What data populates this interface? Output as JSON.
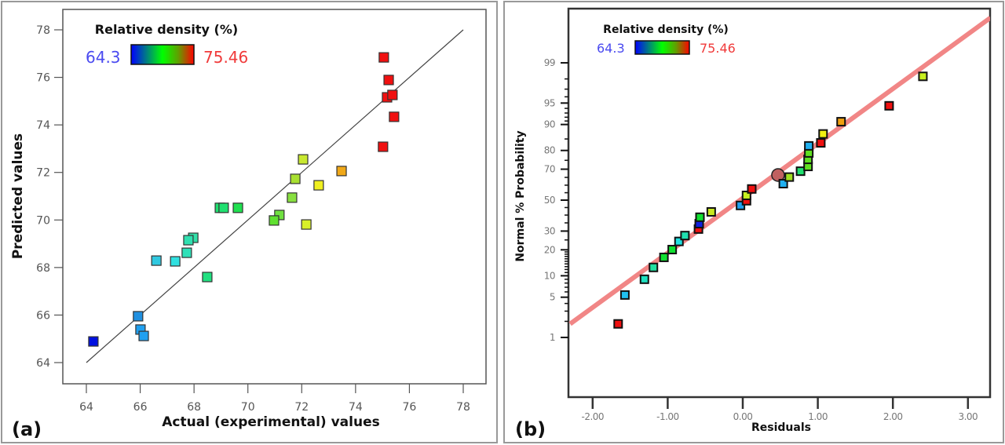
{
  "chart_data": [
    {
      "id": "a",
      "type": "scatter",
      "panel_label": "(a)",
      "title": "",
      "xlabel": "Actual (experimental) values",
      "ylabel": "Predicted values",
      "xlim": [
        64,
        78
      ],
      "ylim": [
        64,
        78
      ],
      "xticks": [
        "64",
        "66",
        "68",
        "70",
        "72",
        "74",
        "76",
        "78"
      ],
      "yticks": [
        "64",
        "66",
        "68",
        "70",
        "72",
        "74",
        "76",
        "78"
      ],
      "grid": false,
      "legend": {
        "title": "Relative density (%)",
        "min_label": "64.3",
        "max_label": "75.46",
        "min_color": "#4a4af0",
        "max_color": "#f03a3a",
        "gradient": [
          "#0000ff",
          "#00ff00",
          "#ff0000"
        ],
        "placement": "top-left"
      },
      "reference_line": {
        "x": [
          64,
          78
        ],
        "y": [
          64,
          78
        ],
        "color": "#444444"
      },
      "points": [
        {
          "x": 75.05,
          "y": 76.84,
          "color": "#f01010"
        },
        {
          "x": 75.23,
          "y": 75.89,
          "color": "#f01010"
        },
        {
          "x": 75.17,
          "y": 75.16,
          "color": "#f01010"
        },
        {
          "x": 75.37,
          "y": 75.26,
          "color": "#f01010"
        },
        {
          "x": 75.43,
          "y": 74.34,
          "color": "#f01010"
        },
        {
          "x": 75.02,
          "y": 73.08,
          "color": "#f01010"
        },
        {
          "x": 72.05,
          "y": 72.55,
          "color": "#c8e830"
        },
        {
          "x": 73.48,
          "y": 72.06,
          "color": "#f0a818"
        },
        {
          "x": 71.76,
          "y": 71.73,
          "color": "#a8e030"
        },
        {
          "x": 72.63,
          "y": 71.46,
          "color": "#f0f020"
        },
        {
          "x": 71.64,
          "y": 70.94,
          "color": "#88e040"
        },
        {
          "x": 71.17,
          "y": 70.21,
          "color": "#70e040"
        },
        {
          "x": 70.97,
          "y": 69.98,
          "color": "#60e030"
        },
        {
          "x": 72.17,
          "y": 69.81,
          "color": "#d8f028"
        },
        {
          "x": 68.96,
          "y": 70.51,
          "color": "#20e070"
        },
        {
          "x": 69.1,
          "y": 70.51,
          "color": "#20e070"
        },
        {
          "x": 69.63,
          "y": 70.51,
          "color": "#20e050"
        },
        {
          "x": 67.97,
          "y": 69.25,
          "color": "#30e0a8"
        },
        {
          "x": 67.79,
          "y": 69.15,
          "color": "#30e0b0"
        },
        {
          "x": 67.73,
          "y": 68.62,
          "color": "#30e0b8"
        },
        {
          "x": 66.6,
          "y": 68.29,
          "color": "#30c8e0"
        },
        {
          "x": 67.3,
          "y": 68.26,
          "color": "#30e0e0"
        },
        {
          "x": 68.49,
          "y": 67.6,
          "color": "#20e080"
        },
        {
          "x": 65.92,
          "y": 65.95,
          "color": "#2090e0"
        },
        {
          "x": 66.01,
          "y": 65.39,
          "color": "#20a0f0"
        },
        {
          "x": 66.13,
          "y": 65.12,
          "color": "#20a0f0"
        },
        {
          "x": 64.26,
          "y": 64.89,
          "color": "#0010e0"
        }
      ]
    },
    {
      "id": "b",
      "type": "scatter",
      "panel_label": "(b)",
      "title": "",
      "xlabel": "Residuals",
      "ylabel": "Normal % Probability",
      "xlim": [
        -2.3,
        3.3
      ],
      "xticks": [
        "-2.00",
        "-1.00",
        "0.00",
        "1.00",
        "2.00",
        "3.00"
      ],
      "xtick_values": [
        -2,
        -1,
        0,
        1,
        2,
        3
      ],
      "yscale": "normal-probability",
      "yticks": [
        "1",
        "5",
        "10",
        "20",
        "30",
        "50",
        "70",
        "80",
        "90",
        "95",
        "99"
      ],
      "ytick_values": [
        1,
        5,
        10,
        20,
        30,
        50,
        70,
        80,
        90,
        95,
        99
      ],
      "grid": false,
      "legend": {
        "title": "Relative density (%)",
        "min_label": "64.3",
        "max_label": "75.46",
        "min_color": "#4a4af0",
        "max_color": "#f03a3a",
        "gradient": [
          "#0000ff",
          "#00ff00",
          "#ff0000"
        ],
        "placement": "top-left"
      },
      "reference_line": {
        "residual": [
          -2.3,
          3.3
        ],
        "probability": [
          1.8,
          99.9
        ],
        "color": "#f08080"
      },
      "highlight_point": {
        "residual": 0.47,
        "probability": 66.5,
        "color": "#c06060"
      },
      "points": [
        {
          "residual": -1.66,
          "probability": 1.8,
          "color": "#f01010"
        },
        {
          "residual": -1.57,
          "probability": 5.4,
          "color": "#20c0f0"
        },
        {
          "residual": -1.31,
          "probability": 9.0,
          "color": "#20e0c0"
        },
        {
          "residual": -1.19,
          "probability": 12.7,
          "color": "#20e0a0"
        },
        {
          "residual": -1.05,
          "probability": 16.6,
          "color": "#10e030"
        },
        {
          "residual": -0.94,
          "probability": 20.1,
          "color": "#10e030"
        },
        {
          "residual": -0.85,
          "probability": 24.2,
          "color": "#20e0e0"
        },
        {
          "residual": -0.77,
          "probability": 27.4,
          "color": "#20e0b0"
        },
        {
          "residual": -0.59,
          "probability": 31.2,
          "color": "#f01010"
        },
        {
          "residual": -0.58,
          "probability": 34.5,
          "color": "#1020e0"
        },
        {
          "residual": -0.57,
          "probability": 38.6,
          "color": "#10e030"
        },
        {
          "residual": -0.42,
          "probability": 42.1,
          "color": "#c8e820"
        },
        {
          "residual": -0.03,
          "probability": 46.4,
          "color": "#20a0f0"
        },
        {
          "residual": 0.05,
          "probability": 49.6,
          "color": "#f01010"
        },
        {
          "residual": 0.05,
          "probability": 53.2,
          "color": "#c8f020"
        },
        {
          "residual": 0.12,
          "probability": 57.5,
          "color": "#f01010"
        },
        {
          "residual": 0.54,
          "probability": 61.0,
          "color": "#20b0f0"
        },
        {
          "residual": 0.62,
          "probability": 65.2,
          "color": "#a0e020"
        },
        {
          "residual": 0.77,
          "probability": 68.8,
          "color": "#20e070"
        },
        {
          "residual": 0.87,
          "probability": 71.6,
          "color": "#60e020"
        },
        {
          "residual": 0.87,
          "probability": 75.5,
          "color": "#60e020"
        },
        {
          "residual": 0.88,
          "probability": 78.8,
          "color": "#60e020"
        },
        {
          "residual": 0.88,
          "probability": 82.1,
          "color": "#20b0f0"
        },
        {
          "residual": 1.04,
          "probability": 83.4,
          "color": "#f01010"
        },
        {
          "residual": 1.07,
          "probability": 86.9,
          "color": "#f0f010"
        },
        {
          "residual": 1.31,
          "probability": 90.8,
          "color": "#f0a010"
        },
        {
          "residual": 1.95,
          "probability": 94.5,
          "color": "#f01010"
        },
        {
          "residual": 2.4,
          "probability": 98.2,
          "color": "#c8f020"
        }
      ]
    }
  ]
}
